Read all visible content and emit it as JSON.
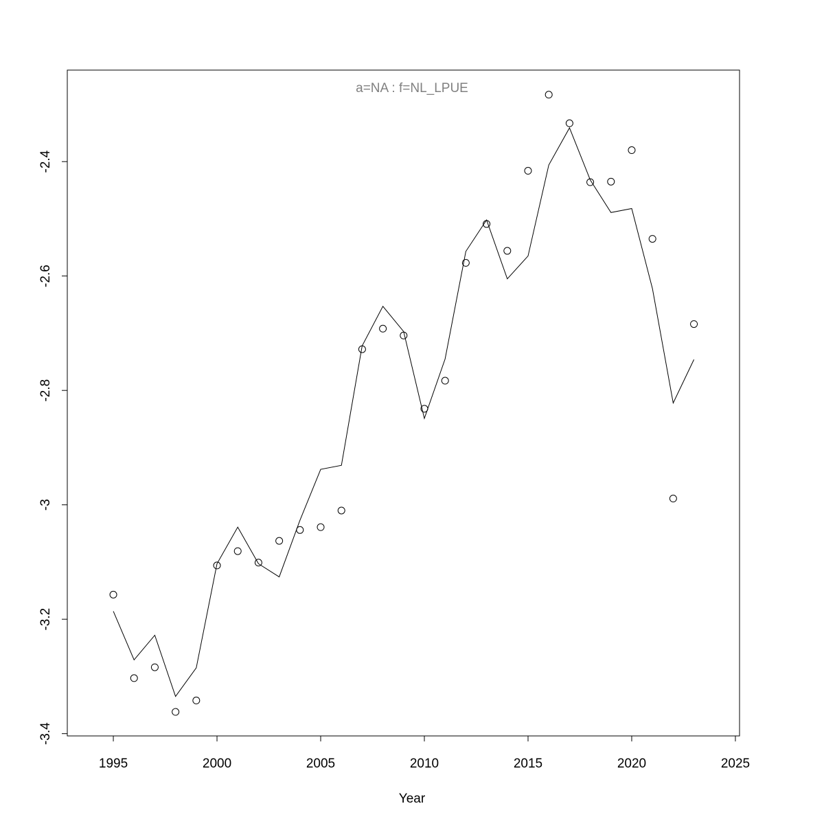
{
  "chart_data": {
    "type": "line",
    "title": "a=NA  :  f=NL_LPUE",
    "x_label": "Year",
    "x": [
      1995,
      1996,
      1997,
      1998,
      1999,
      2000,
      2001,
      2002,
      2003,
      2004,
      2005,
      2006,
      2007,
      2008,
      2009,
      2010,
      2011,
      2012,
      2013,
      2014,
      2015,
      2016,
      2017,
      2018,
      2019,
      2020,
      2021,
      2022,
      2023
    ],
    "series": [
      {
        "mode": "points",
        "color": "#000000",
        "values": [
          -3.157,
          -3.303,
          -3.284,
          -3.362,
          -3.342,
          -3.106,
          -3.081,
          -3.101,
          -3.063,
          -3.044,
          -3.039,
          -3.01,
          -2.728,
          -2.692,
          -2.704,
          -2.832,
          -2.783,
          -2.577,
          -2.509,
          -2.556,
          -2.416,
          -2.283,
          -2.333,
          -2.436,
          -2.435,
          -2.38,
          -2.535,
          -2.989,
          -2.684
        ]
      },
      {
        "mode": "line",
        "color": "#000000",
        "values": [
          -3.186,
          -3.271,
          -3.228,
          -3.335,
          -3.285,
          -3.103,
          -3.039,
          -3.103,
          -3.126,
          -3.027,
          -2.938,
          -2.931,
          -2.722,
          -2.653,
          -2.697,
          -2.849,
          -2.745,
          -2.557,
          -2.502,
          -2.605,
          -2.565,
          -2.406,
          -2.341,
          -2.432,
          -2.489,
          -2.482,
          -2.622,
          -2.822,
          -2.746
        ]
      }
    ],
    "xlim": [
      1992.78,
      2025.2
    ],
    "ylim": [
      -3.404,
      -2.24
    ],
    "xticks": [
      1995,
      2000,
      2005,
      2010,
      2015,
      2020,
      2025
    ],
    "yticks": [
      -3.4,
      -3.2,
      -3.0,
      -2.8,
      -2.6,
      -2.4
    ],
    "title_color": "#808080"
  }
}
